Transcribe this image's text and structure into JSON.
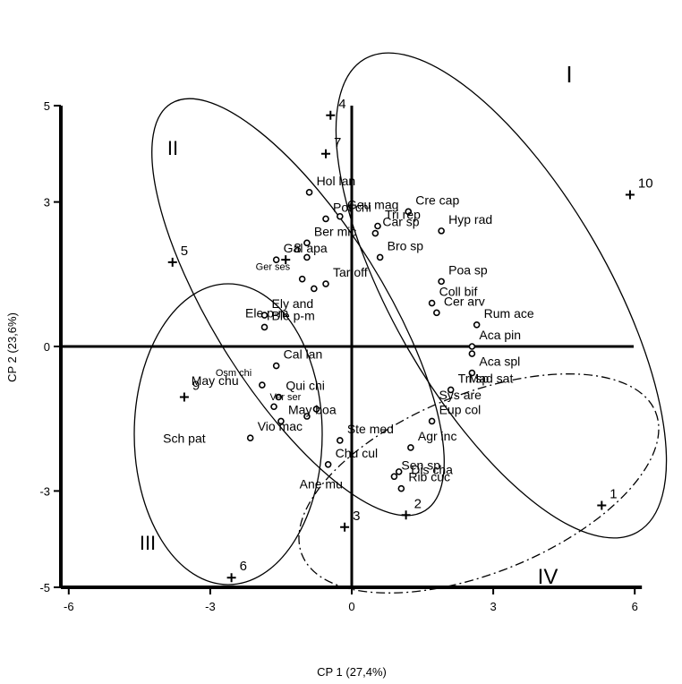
{
  "chart_data": {
    "type": "scatter",
    "xlabel": "CP 1 (27,4%)",
    "ylabel": "CP 2 (23,6%)",
    "xlim": [
      -6,
      6
    ],
    "ylim": [
      -5,
      5
    ],
    "x_ticks": [
      "-6",
      "-3",
      "0",
      "3",
      "6"
    ],
    "y_ticks": [
      "5",
      "3",
      "0",
      "-3",
      "-5"
    ],
    "x_tick_values": [
      -6,
      -3,
      0,
      3,
      6
    ],
    "y_tick_values": [
      5,
      3,
      0,
      -3,
      -5
    ],
    "sites": [
      {
        "label": "1",
        "x": 5.3,
        "y": -3.3
      },
      {
        "label": "2",
        "x": 1.15,
        "y": -3.5
      },
      {
        "label": "3",
        "x": -0.15,
        "y": -3.75
      },
      {
        "label": "4",
        "x": -0.45,
        "y": 4.8
      },
      {
        "label": "5",
        "x": -3.8,
        "y": 1.75
      },
      {
        "label": "6",
        "x": -2.55,
        "y": -4.8
      },
      {
        "label": "7",
        "x": -0.55,
        "y": 4.0
      },
      {
        "label": "8",
        "x": -1.4,
        "y": 1.8
      },
      {
        "label": "9",
        "x": -3.55,
        "y": -1.05
      },
      {
        "label": "10",
        "x": 5.9,
        "y": 3.15
      }
    ],
    "species": [
      {
        "label": "Hol lan",
        "x": -0.9,
        "y": 3.2
      },
      {
        "label": "Geu mag",
        "x": -0.25,
        "y": 2.7
      },
      {
        "label": "Pot chi",
        "x": -0.55,
        "y": 2.65
      },
      {
        "label": "Gal apa",
        "x": -1.6,
        "y": 1.8
      },
      {
        "label": "Ber mic",
        "x": -0.95,
        "y": 2.15
      },
      {
        "label": "",
        "x": -0.95,
        "y": 1.85
      },
      {
        "label": "Ger ses",
        "x": -1.05,
        "y": 1.4
      },
      {
        "label": "",
        "x": -0.8,
        "y": 1.2
      },
      {
        "label": "Tar off",
        "x": -0.55,
        "y": 1.3
      },
      {
        "label": "Ely and",
        "x": -1.85,
        "y": 0.65
      },
      {
        "label": "Ble p-m",
        "x": -1.85,
        "y": 0.4
      },
      {
        "label": "Cal lan",
        "x": -1.6,
        "y": -0.4
      },
      {
        "label": "Osm chi",
        "x": -1.9,
        "y": -0.8
      },
      {
        "label": "Qui chi",
        "x": -1.55,
        "y": -1.05
      },
      {
        "label": "",
        "x": -1.65,
        "y": -1.25
      },
      {
        "label": "Ver ser",
        "x": -0.75,
        "y": -1.3
      },
      {
        "label": "",
        "x": -0.95,
        "y": -1.45
      },
      {
        "label": "May boa",
        "x": -1.5,
        "y": -1.55
      },
      {
        "label": "Vio mac",
        "x": -2.15,
        "y": -1.9
      },
      {
        "label": "Ste med",
        "x": -0.25,
        "y": -1.95
      },
      {
        "label": "Chu cul",
        "x": -0.5,
        "y": -2.45
      },
      {
        "label": "Cre cap",
        "x": 1.2,
        "y": 2.8
      },
      {
        "label": "Tri rep",
        "x": 0.55,
        "y": 2.5
      },
      {
        "label": "Car sp",
        "x": 0.5,
        "y": 2.35
      },
      {
        "label": "Hyp rad",
        "x": 1.9,
        "y": 2.4
      },
      {
        "label": "Bro sp",
        "x": 0.6,
        "y": 1.85
      },
      {
        "label": "Poa sp",
        "x": 1.9,
        "y": 1.35
      },
      {
        "label": "Coll bif",
        "x": 1.7,
        "y": 0.9
      },
      {
        "label": "Cer arv",
        "x": 1.8,
        "y": 0.7
      },
      {
        "label": "Rum ace",
        "x": 2.65,
        "y": 0.45
      },
      {
        "label": "Aca pin",
        "x": 2.55,
        "y": 0.0
      },
      {
        "label": "",
        "x": 2.55,
        "y": -0.15
      },
      {
        "label": "Aca spl",
        "x": 2.55,
        "y": -0.55
      },
      {
        "label": "Tri sp",
        "x": 2.1,
        "y": -0.9
      },
      {
        "label": "Eup col",
        "x": 1.7,
        "y": -1.55
      },
      {
        "label": "Agr inc",
        "x": 1.25,
        "y": -2.1
      },
      {
        "label": "",
        "x": 1.0,
        "y": -2.6
      },
      {
        "label": "Sen sp",
        "x": 0.9,
        "y": -2.7
      },
      {
        "label": "Rib cuc",
        "x": 1.05,
        "y": -2.95
      }
    ],
    "free_labels": [
      {
        "text": "Mad sat",
        "x": 2.95,
        "y": -0.75
      },
      {
        "text": "Sys are",
        "x": 2.3,
        "y": -1.1
      },
      {
        "text": "Dis cha",
        "x": 1.7,
        "y": -2.65
      },
      {
        "text": "Ane mu",
        "x": -0.65,
        "y": -2.95
      },
      {
        "text": "Sch pat",
        "x": -3.55,
        "y": -2.0
      },
      {
        "text": "May chu",
        "x": -2.9,
        "y": -0.8
      },
      {
        "text": "Ele p-m",
        "x": -1.8,
        "y": 0.6
      }
    ],
    "groups": [
      {
        "label": "I",
        "style": "solid"
      },
      {
        "label": "II",
        "style": "solid"
      },
      {
        "label": "III",
        "style": "solid"
      },
      {
        "label": "IV",
        "style": "dash-dot"
      }
    ]
  }
}
